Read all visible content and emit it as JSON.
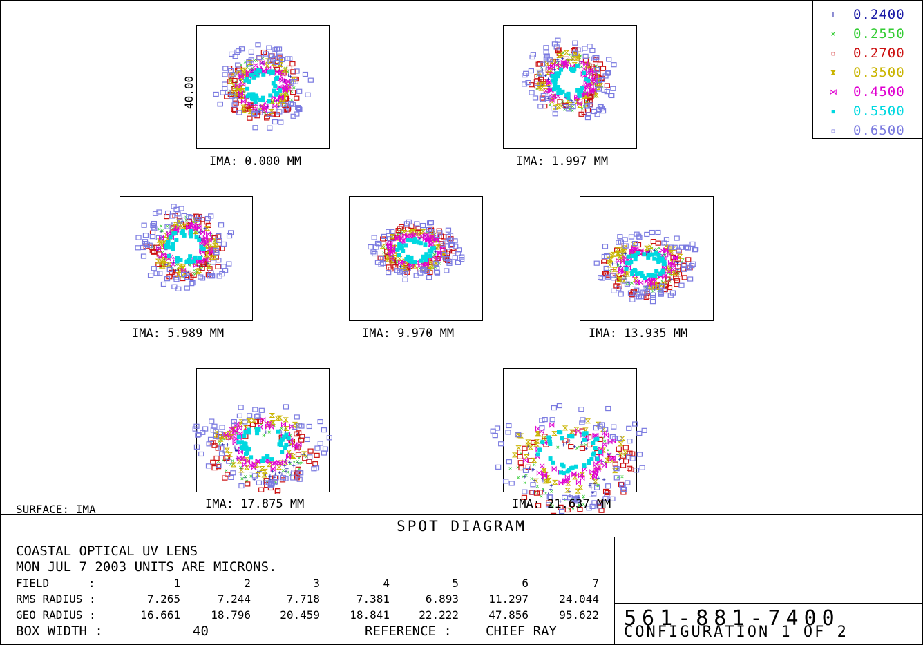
{
  "chart_data": {
    "type": "scatter",
    "title": "SPOT DIAGRAM",
    "surface": "SURFACE: IMA",
    "scale_label": "40.00",
    "legend": [
      {
        "label": "0.2400",
        "color": "#1a1aa6",
        "marker": "plus"
      },
      {
        "label": "0.2550",
        "color": "#33cc33",
        "marker": "x"
      },
      {
        "label": "0.2700",
        "color": "#cc1111",
        "marker": "square"
      },
      {
        "label": "0.3500",
        "color": "#c9b400",
        "marker": "hourglass"
      },
      {
        "label": "0.4500",
        "color": "#e000d0",
        "marker": "bowtie"
      },
      {
        "label": "0.5500",
        "color": "#00d8e0",
        "marker": "filled-square"
      },
      {
        "label": "0.6500",
        "color": "#7a7ae0",
        "marker": "open-square"
      }
    ],
    "fields": [
      {
        "label": "IMA: 0.000 MM",
        "shape": "round",
        "spread": 1.0,
        "offset": 0.0
      },
      {
        "label": "IMA: 1.997 MM",
        "shape": "round",
        "spread": 1.0,
        "offset": 0.0
      },
      {
        "label": "IMA: 5.989 MM",
        "shape": "round",
        "spread": 1.0,
        "offset": 0.0
      },
      {
        "label": "IMA: 9.970 MM",
        "shape": "oval",
        "spread": 1.0,
        "offset": 0.0
      },
      {
        "label": "IMA: 13.935 MM",
        "shape": "fan",
        "spread": 1.1,
        "offset": 0.1
      },
      {
        "label": "IMA: 17.875 MM",
        "shape": "fan",
        "spread": 1.4,
        "offset": 0.25
      },
      {
        "label": "IMA: 21.637 MM",
        "shape": "fan",
        "spread": 1.7,
        "offset": 0.35
      }
    ],
    "box_width": "40",
    "units": "MICRONS"
  },
  "info": {
    "lens": "COASTAL OPTICAL UV LENS",
    "date_line": "MON JUL 7 2003  UNITS ARE MICRONS.",
    "field_label": "FIELD",
    "rms_label": "RMS RADIUS :",
    "geo_label": "GEO RADIUS :",
    "colon": ":",
    "field_numbers": [
      "1",
      "2",
      "3",
      "4",
      "5",
      "6",
      "7"
    ],
    "rms_radius": [
      "7.265",
      "7.244",
      "7.718",
      "7.381",
      "6.893",
      "11.297",
      "24.044"
    ],
    "geo_radius": [
      "16.661",
      "18.796",
      "20.459",
      "18.841",
      "22.222",
      "47.856",
      "95.622"
    ],
    "box_width_label": "BOX WIDTH    :",
    "box_width_value": "40",
    "reference_label": "REFERENCE    :",
    "reference_value": "CHIEF RAY"
  },
  "footer": {
    "phone": "561-881-7400",
    "configuration": "CONFIGURATION 1 OF 2"
  }
}
